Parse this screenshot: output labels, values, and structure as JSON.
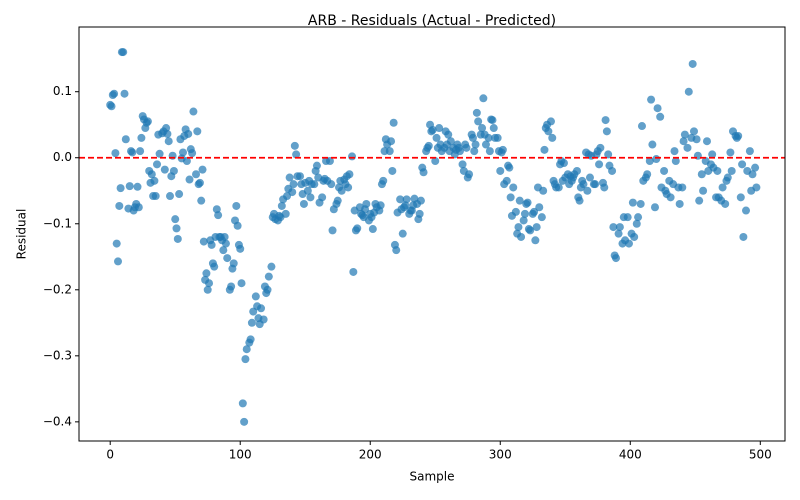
{
  "chart_data": {
    "type": "scatter",
    "title": "ARB - Residuals (Actual - Predicted)",
    "x_label": "Sample",
    "y_label": "Residual",
    "color": "#1f77b4",
    "reference_y": 0,
    "reference_color": "#ff0000",
    "xlim": [
      -24,
      519
    ],
    "ylim": [
      -0.429,
      0.198
    ],
    "xticks": [
      0,
      100,
      200,
      300,
      400,
      500
    ],
    "yticks": [
      {
        "value": -0.4,
        "label": "−0.4"
      },
      {
        "value": -0.3,
        "label": "−0.3"
      },
      {
        "value": -0.2,
        "label": "−0.2"
      },
      {
        "value": -0.1,
        "label": "−0.1"
      },
      {
        "value": 0,
        "label": "0.0"
      },
      0.1
    ],
    "x": [
      0,
      1,
      2,
      3,
      4,
      5,
      6,
      7,
      8,
      9,
      10,
      11,
      12,
      14,
      15,
      16,
      17,
      18,
      19,
      20,
      21,
      22,
      23,
      24,
      25,
      26,
      27,
      28,
      29,
      30,
      31,
      32,
      33,
      34,
      35,
      36,
      37,
      38,
      40,
      41,
      42,
      43,
      44,
      45,
      46,
      47,
      48,
      49,
      50,
      51,
      52,
      53,
      54,
      55,
      56,
      57,
      58,
      59,
      60,
      61,
      62,
      63,
      64,
      66,
      67,
      68,
      69,
      70,
      71,
      72,
      73,
      74,
      75,
      76,
      77,
      78,
      79,
      80,
      81,
      82,
      83,
      84,
      85,
      86,
      87,
      88,
      89,
      90,
      92,
      93,
      94,
      95,
      96,
      97,
      98,
      99,
      100,
      101,
      102,
      103,
      104,
      105,
      107,
      108,
      109,
      110,
      112,
      113,
      114,
      115,
      116,
      118,
      119,
      120,
      121,
      122,
      124,
      125,
      126,
      127,
      129,
      130,
      131,
      132,
      133,
      135,
      136,
      137,
      138,
      140,
      141,
      142,
      143,
      144,
      146,
      147,
      148,
      149,
      150,
      152,
      153,
      154,
      155,
      157,
      158,
      159,
      160,
      161,
      163,
      164,
      165,
      166,
      167,
      169,
      170,
      171,
      172,
      174,
      175,
      176,
      177,
      178,
      180,
      181,
      182,
      183,
      184,
      186,
      187,
      188,
      189,
      190,
      192,
      193,
      194,
      195,
      196,
      197,
      199,
      200,
      201,
      202,
      203,
      204,
      205,
      207,
      208,
      209,
      210,
      211,
      212,
      213,
      215,
      216,
      217,
      218,
      219,
      220,
      221,
      223,
      224,
      225,
      226,
      227,
      228,
      230,
      231,
      232,
      233,
      234,
      236,
      237,
      238,
      239,
      240,
      241,
      243,
      244,
      245,
      246,
      247,
      248,
      250,
      251,
      252,
      253,
      254,
      255,
      257,
      258,
      259,
      260,
      261,
      262,
      264,
      265,
      266,
      267,
      268,
      269,
      271,
      272,
      273,
      274,
      275,
      276,
      278,
      279,
      280,
      281,
      282,
      283,
      285,
      286,
      287,
      288,
      289,
      291,
      292,
      293,
      294,
      295,
      296,
      298,
      299,
      300,
      301,
      302,
      303,
      305,
      306,
      307,
      308,
      309,
      310,
      312,
      313,
      314,
      315,
      316,
      318,
      319,
      320,
      321,
      322,
      323,
      325,
      326,
      327,
      328,
      329,
      330,
      332,
      333,
      334,
      335,
      336,
      337,
      339,
      340,
      341,
      342,
      343,
      345,
      346,
      347,
      348,
      349,
      350,
      352,
      353,
      354,
      355,
      356,
      357,
      359,
      360,
      361,
      362,
      363,
      364,
      366,
      367,
      368,
      369,
      370,
      372,
      373,
      374,
      375,
      376,
      377,
      379,
      380,
      381,
      382,
      383,
      384,
      386,
      387,
      388,
      389,
      391,
      392,
      394,
      395,
      396,
      398,
      399,
      401,
      402,
      403,
      405,
      406,
      408,
      409,
      410,
      412,
      413,
      415,
      416,
      417,
      419,
      420,
      421,
      423,
      424,
      426,
      427,
      428,
      430,
      431,
      433,
      434,
      435,
      437,
      438,
      440,
      441,
      442,
      444,
      445,
      447,
      448,
      449,
      451,
      452,
      453,
      455,
      456,
      458,
      459,
      460,
      462,
      463,
      464,
      466,
      467,
      468,
      470,
      471,
      473,
      474,
      475,
      477,
      478,
      479,
      481,
      482,
      483,
      485,
      486,
      487,
      489,
      490,
      492,
      493,
      494,
      496,
      497
    ],
    "values": [
      0.08,
      0.078,
      0.095,
      0.097,
      0.007,
      -0.13,
      -0.157,
      -0.073,
      -0.046,
      0.16,
      0.16,
      0.097,
      0.028,
      -0.077,
      -0.043,
      0.01,
      0.008,
      -0.08,
      -0.075,
      -0.07,
      -0.044,
      -0.075,
      0.01,
      0.03,
      0.063,
      0.058,
      0.045,
      0.053,
      0.055,
      -0.02,
      -0.038,
      -0.025,
      -0.058,
      -0.035,
      -0.058,
      -0.01,
      0.035,
      0.006,
      0.037,
      0.04,
      -0.018,
      0.045,
      0.036,
      0.025,
      -0.058,
      -0.028,
      0.003,
      -0.02,
      -0.093,
      -0.107,
      -0.123,
      -0.055,
      0.028,
      -0.001,
      0.008,
      0.033,
      0.043,
      -0.005,
      0.036,
      -0.033,
      0.013,
      0.007,
      0.07,
      -0.025,
      0.04,
      -0.04,
      -0.038,
      -0.065,
      -0.018,
      -0.127,
      -0.185,
      -0.175,
      -0.2,
      -0.19,
      -0.125,
      -0.132,
      -0.16,
      -0.165,
      -0.12,
      -0.078,
      -0.087,
      -0.12,
      -0.12,
      -0.125,
      -0.14,
      -0.12,
      -0.13,
      -0.152,
      -0.2,
      -0.195,
      -0.168,
      -0.16,
      -0.095,
      -0.073,
      -0.103,
      -0.132,
      -0.138,
      -0.19,
      -0.372,
      -0.4,
      -0.305,
      -0.29,
      -0.28,
      -0.275,
      -0.25,
      -0.233,
      -0.21,
      -0.225,
      -0.243,
      -0.252,
      -0.228,
      -0.245,
      -0.195,
      -0.205,
      -0.2,
      -0.18,
      -0.165,
      -0.09,
      -0.085,
      -0.093,
      -0.095,
      -0.088,
      -0.09,
      -0.073,
      -0.063,
      -0.085,
      -0.058,
      -0.047,
      -0.03,
      -0.052,
      -0.04,
      0.018,
      0.005,
      -0.028,
      -0.028,
      -0.04,
      -0.055,
      -0.07,
      -0.038,
      -0.05,
      -0.035,
      -0.06,
      -0.04,
      -0.04,
      -0.02,
      -0.012,
      -0.03,
      -0.068,
      -0.06,
      -0.035,
      -0.032,
      -0.005,
      -0.035,
      -0.005,
      -0.04,
      -0.11,
      -0.078,
      -0.07,
      -0.065,
      -0.045,
      -0.035,
      -0.05,
      -0.033,
      -0.04,
      -0.028,
      -0.045,
      -0.025,
      0.002,
      -0.173,
      -0.08,
      -0.11,
      -0.107,
      -0.075,
      -0.085,
      -0.087,
      -0.09,
      -0.078,
      -0.07,
      -0.095,
      -0.085,
      -0.09,
      -0.108,
      -0.083,
      -0.07,
      -0.075,
      -0.08,
      -0.072,
      -0.04,
      -0.035,
      0.01,
      0.028,
      0.02,
      0.01,
      0.025,
      -0.02,
      0.053,
      -0.132,
      -0.14,
      -0.083,
      -0.063,
      -0.078,
      -0.115,
      -0.075,
      -0.072,
      -0.063,
      -0.085,
      -0.08,
      -0.08,
      -0.072,
      -0.062,
      -0.07,
      -0.093,
      -0.085,
      -0.065,
      -0.015,
      -0.022,
      0.01,
      0.015,
      0.018,
      0.05,
      0.04,
      0.042,
      -0.005,
      0.03,
      0.015,
      0.045,
      0.02,
      0.01,
      0.015,
      0.04,
      0.02,
      0.035,
      0.01,
      0.025,
      0.015,
      0.005,
      0.012,
      0.02,
      0.015,
      0.01,
      -0.01,
      -0.02,
      0.02,
      0.015,
      -0.03,
      -0.025,
      0.035,
      0.03,
      0.01,
      0.02,
      0.068,
      0.055,
      0.035,
      0.045,
      0.09,
      0.035,
      0.02,
      0.03,
      0.01,
      0.058,
      0.057,
      0.045,
      0.03,
      0.03,
      0.01,
      -0.02,
      0.008,
      0.012,
      -0.04,
      -0.035,
      -0.012,
      -0.015,
      -0.06,
      -0.088,
      -0.045,
      -0.082,
      -0.115,
      -0.105,
      -0.065,
      -0.12,
      -0.095,
      -0.085,
      -0.07,
      -0.068,
      -0.108,
      -0.11,
      -0.085,
      -0.082,
      -0.125,
      -0.105,
      -0.045,
      -0.075,
      -0.09,
      -0.05,
      0.012,
      0.045,
      0.05,
      0.04,
      0.055,
      0.03,
      -0.035,
      -0.04,
      -0.045,
      -0.045,
      -0.01,
      -0.005,
      -0.035,
      -0.008,
      -0.03,
      -0.025,
      -0.04,
      -0.028,
      -0.035,
      -0.03,
      -0.025,
      -0.02,
      -0.06,
      -0.065,
      -0.045,
      -0.035,
      -0.04,
      0.008,
      -0.05,
      0.005,
      -0.03,
      0.003,
      -0.04,
      -0.04,
      0.005,
      0.01,
      -0.01,
      0.015,
      -0.038,
      -0.045,
      0.057,
      0.04,
      0.005,
      -0.012,
      -0.02,
      -0.105,
      -0.148,
      -0.152,
      -0.115,
      -0.105,
      -0.13,
      -0.09,
      -0.125,
      -0.09,
      -0.13,
      -0.115,
      -0.068,
      -0.12,
      -0.1,
      -0.09,
      -0.07,
      0.048,
      -0.035,
      -0.03,
      -0.025,
      -0.005,
      0.088,
      0.02,
      -0.075,
      -0.002,
      0.075,
      0.062,
      -0.045,
      -0.02,
      -0.05,
      -0.055,
      -0.035,
      -0.06,
      -0.04,
      0.01,
      -0.005,
      -0.045,
      -0.07,
      -0.045,
      0.025,
      0.035,
      0.015,
      0.1,
      0.03,
      0.142,
      0.04,
      0.028,
      0.003,
      -0.065,
      -0.025,
      -0.05,
      -0.005,
      0.025,
      -0.02,
      -0.01,
      0.005,
      -0.015,
      -0.06,
      -0.02,
      -0.06,
      -0.065,
      -0.045,
      -0.07,
      -0.035,
      -0.03,
      0.008,
      -0.02,
      0.04,
      0.033,
      0.03,
      0.033,
      -0.06,
      -0.01,
      -0.12,
      -0.08,
      -0.02,
      0.01,
      -0.05,
      -0.025,
      -0.015,
      -0.045
    ]
  }
}
